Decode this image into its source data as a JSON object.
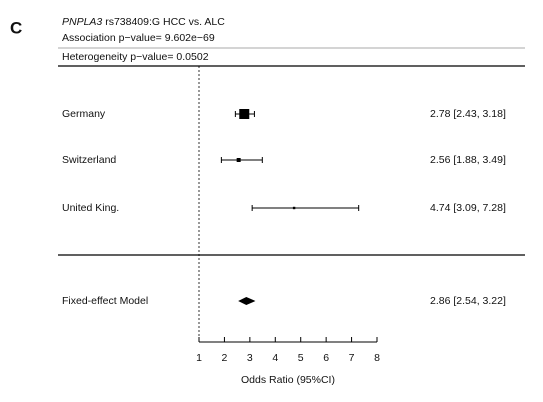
{
  "chart_data": {
    "type": "forest",
    "panel": "C",
    "title_gene": "PNPLA3",
    "title_rest": " rs738409:G HCC vs. ALC",
    "association": "Association p−value= 9.602e−69",
    "heterogeneity": "Heterogeneity p−value= 0.0502",
    "studies": [
      {
        "name": "Germany",
        "or": 2.78,
        "lo": 2.43,
        "hi": 3.18,
        "label": "2.78 [2.43, 3.18]"
      },
      {
        "name": "Switzerland",
        "or": 2.56,
        "lo": 1.88,
        "hi": 3.49,
        "label": "2.56 [1.88, 3.49]"
      },
      {
        "name": "United King.",
        "or": 4.74,
        "lo": 3.09,
        "hi": 7.28,
        "label": "4.74 [3.09, 7.28]"
      }
    ],
    "summary": {
      "name": "Fixed-effect Model",
      "or": 2.86,
      "lo": 2.54,
      "hi": 3.22,
      "label": "2.86 [2.54, 3.22]"
    },
    "reference": 1,
    "xlim": [
      1,
      8
    ],
    "xticks": [
      1,
      2,
      3,
      4,
      5,
      6,
      7,
      8
    ],
    "xlabel": "Odds Ratio (95%CI)",
    "color": "#000000"
  }
}
